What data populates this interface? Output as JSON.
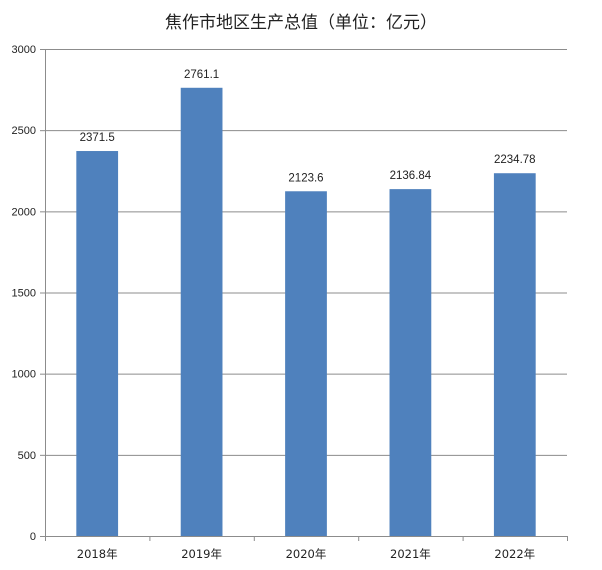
{
  "chart_data": {
    "type": "bar",
    "title": "焦作市地区生产总值（单位：亿元）",
    "categories": [
      "2018年",
      "2019年",
      "2020年",
      "2021年",
      "2022年"
    ],
    "values": [
      2371.5,
      2761.1,
      2123.6,
      2136.84,
      2234.78
    ],
    "data_labels": [
      "2371.5",
      "2761.1",
      "2123.6",
      "2136.84",
      "2234.78"
    ],
    "ylim": [
      0,
      3000
    ],
    "yticks": [
      0,
      500,
      1000,
      1500,
      2000,
      2500,
      3000
    ],
    "grid": true,
    "legend": "none",
    "bar_color": "#4F81BD",
    "grid_color": "#8C8C8C",
    "axis_color": "#8C8C8C"
  }
}
